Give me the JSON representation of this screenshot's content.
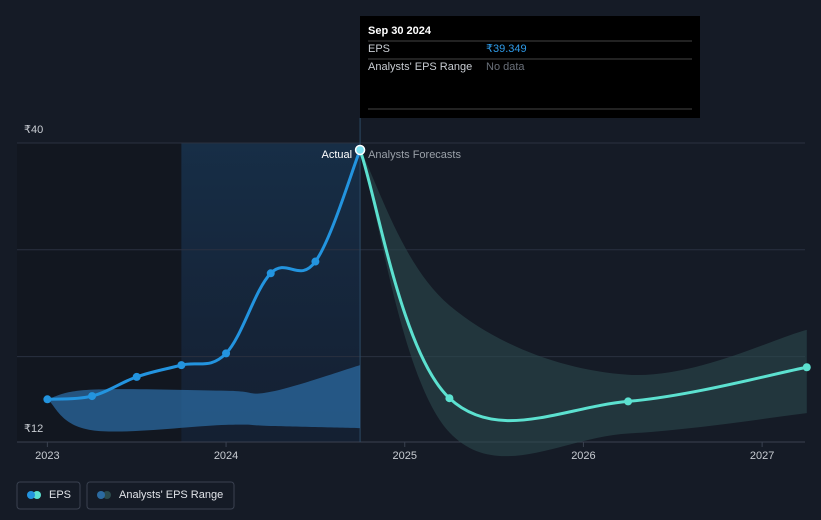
{
  "chart_data": {
    "type": "line",
    "xlim": [
      2022.83,
      2027.24
    ],
    "xticks": [
      2023,
      2024,
      2025,
      2026,
      2027
    ],
    "ylim": [
      12,
      40
    ],
    "yticks": [
      {
        "value": 12,
        "label": "₹12"
      },
      {
        "value": 40,
        "label": "₹40"
      }
    ],
    "ygrid": [
      20,
      30,
      40
    ],
    "series": [
      {
        "name": "EPS",
        "color": "#2394df",
        "x": [
          2023.0,
          2023.25,
          2023.5,
          2023.75,
          2024.0,
          2024.25,
          2024.5,
          2024.75
        ],
        "values": [
          16.0,
          16.3,
          18.1,
          19.2,
          20.3,
          27.8,
          28.9,
          39.349
        ]
      },
      {
        "color": "#5ce1d0",
        "x": [
          2024.75,
          2025.25,
          2026.25,
          2027.25
        ],
        "values": [
          39.349,
          16.1,
          15.8,
          19.0
        ]
      }
    ],
    "ranges": [
      {
        "name": "Analysts' EPS Range",
        "color": "#2b6aa0",
        "x": [
          2023.0,
          2023.25,
          2024.0,
          2024.25,
          2024.75
        ],
        "high": [
          16.0,
          16.9,
          16.8,
          16.7,
          19.2
        ],
        "low": [
          16.0,
          13.1,
          13.6,
          13.5,
          13.3
        ]
      },
      {
        "color": "#2b4a4c",
        "x": [
          2024.75,
          2025.25,
          2026.25,
          2027.25
        ],
        "high": [
          39.349,
          24.8,
          18.3,
          22.5
        ],
        "low": [
          39.349,
          12.9,
          12.8,
          14.7
        ]
      }
    ],
    "annotations": {
      "actual": "Actual",
      "forecast": "Analysts Forecasts"
    },
    "tooltip": {
      "date": "Sep 30 2024",
      "rows": [
        {
          "label": "EPS",
          "value": "₹39.349"
        },
        {
          "label": "Analysts' EPS Range",
          "value": "No data"
        }
      ]
    }
  }
}
